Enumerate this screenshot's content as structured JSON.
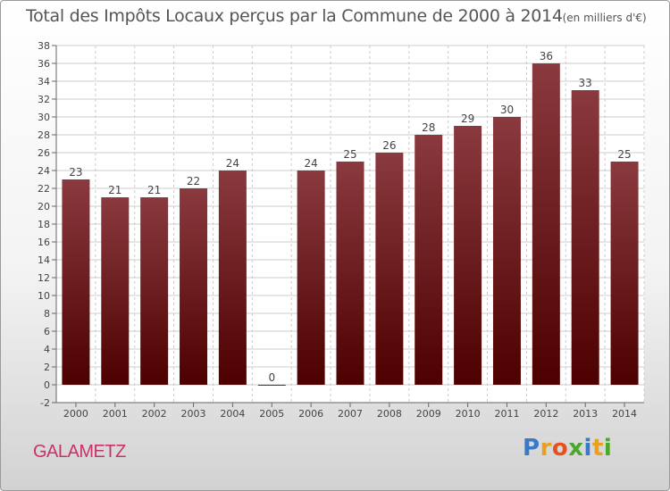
{
  "title": "Total des Impôts Locaux perçus par la Commune de 2000 à 2014",
  "unit": "(en milliers d'€)",
  "commune": "GALAMETZ",
  "logo": {
    "letters": [
      "P",
      "r",
      "o",
      "x",
      "i",
      "t",
      "i"
    ],
    "colors": [
      "#3a78c8",
      "#e8a020",
      "#e85020",
      "#4aa82a",
      "#3a78c8",
      "#e8a020",
      "#4aa82a"
    ]
  },
  "colors": {
    "bar_top": "#8a3a3e",
    "bar_bottom": "#4d0000",
    "axis": "#666666",
    "grid": "#cccccc"
  },
  "chart_data": {
    "type": "bar",
    "title": "Total des Impôts Locaux perçus par la Commune de 2000 à 2014",
    "categories": [
      "2000",
      "2001",
      "2002",
      "2003",
      "2004",
      "2005",
      "2006",
      "2007",
      "2008",
      "2009",
      "2010",
      "2011",
      "2012",
      "2013",
      "2014"
    ],
    "values": [
      23,
      21,
      21,
      22,
      24,
      0,
      24,
      25,
      26,
      28,
      29,
      30,
      36,
      33,
      25
    ],
    "data_labels": [
      "23",
      "21",
      "21",
      "22",
      "24",
      "0",
      "24",
      "25",
      "26",
      "28",
      "29",
      "30",
      "36",
      "33",
      "25"
    ],
    "ylim": [
      -2,
      38
    ],
    "yticks": [
      -2,
      0,
      2,
      4,
      6,
      8,
      10,
      12,
      14,
      16,
      18,
      20,
      22,
      24,
      26,
      28,
      30,
      32,
      34,
      36,
      38
    ],
    "ytick_labels": [
      "-2",
      "0",
      "2",
      "4",
      "6",
      "8",
      "10",
      "12",
      "14",
      "16",
      "18",
      "20",
      "22",
      "24",
      "26",
      "28",
      "30",
      "32",
      "34",
      "36",
      "38"
    ],
    "grid": true,
    "legend": "none"
  }
}
